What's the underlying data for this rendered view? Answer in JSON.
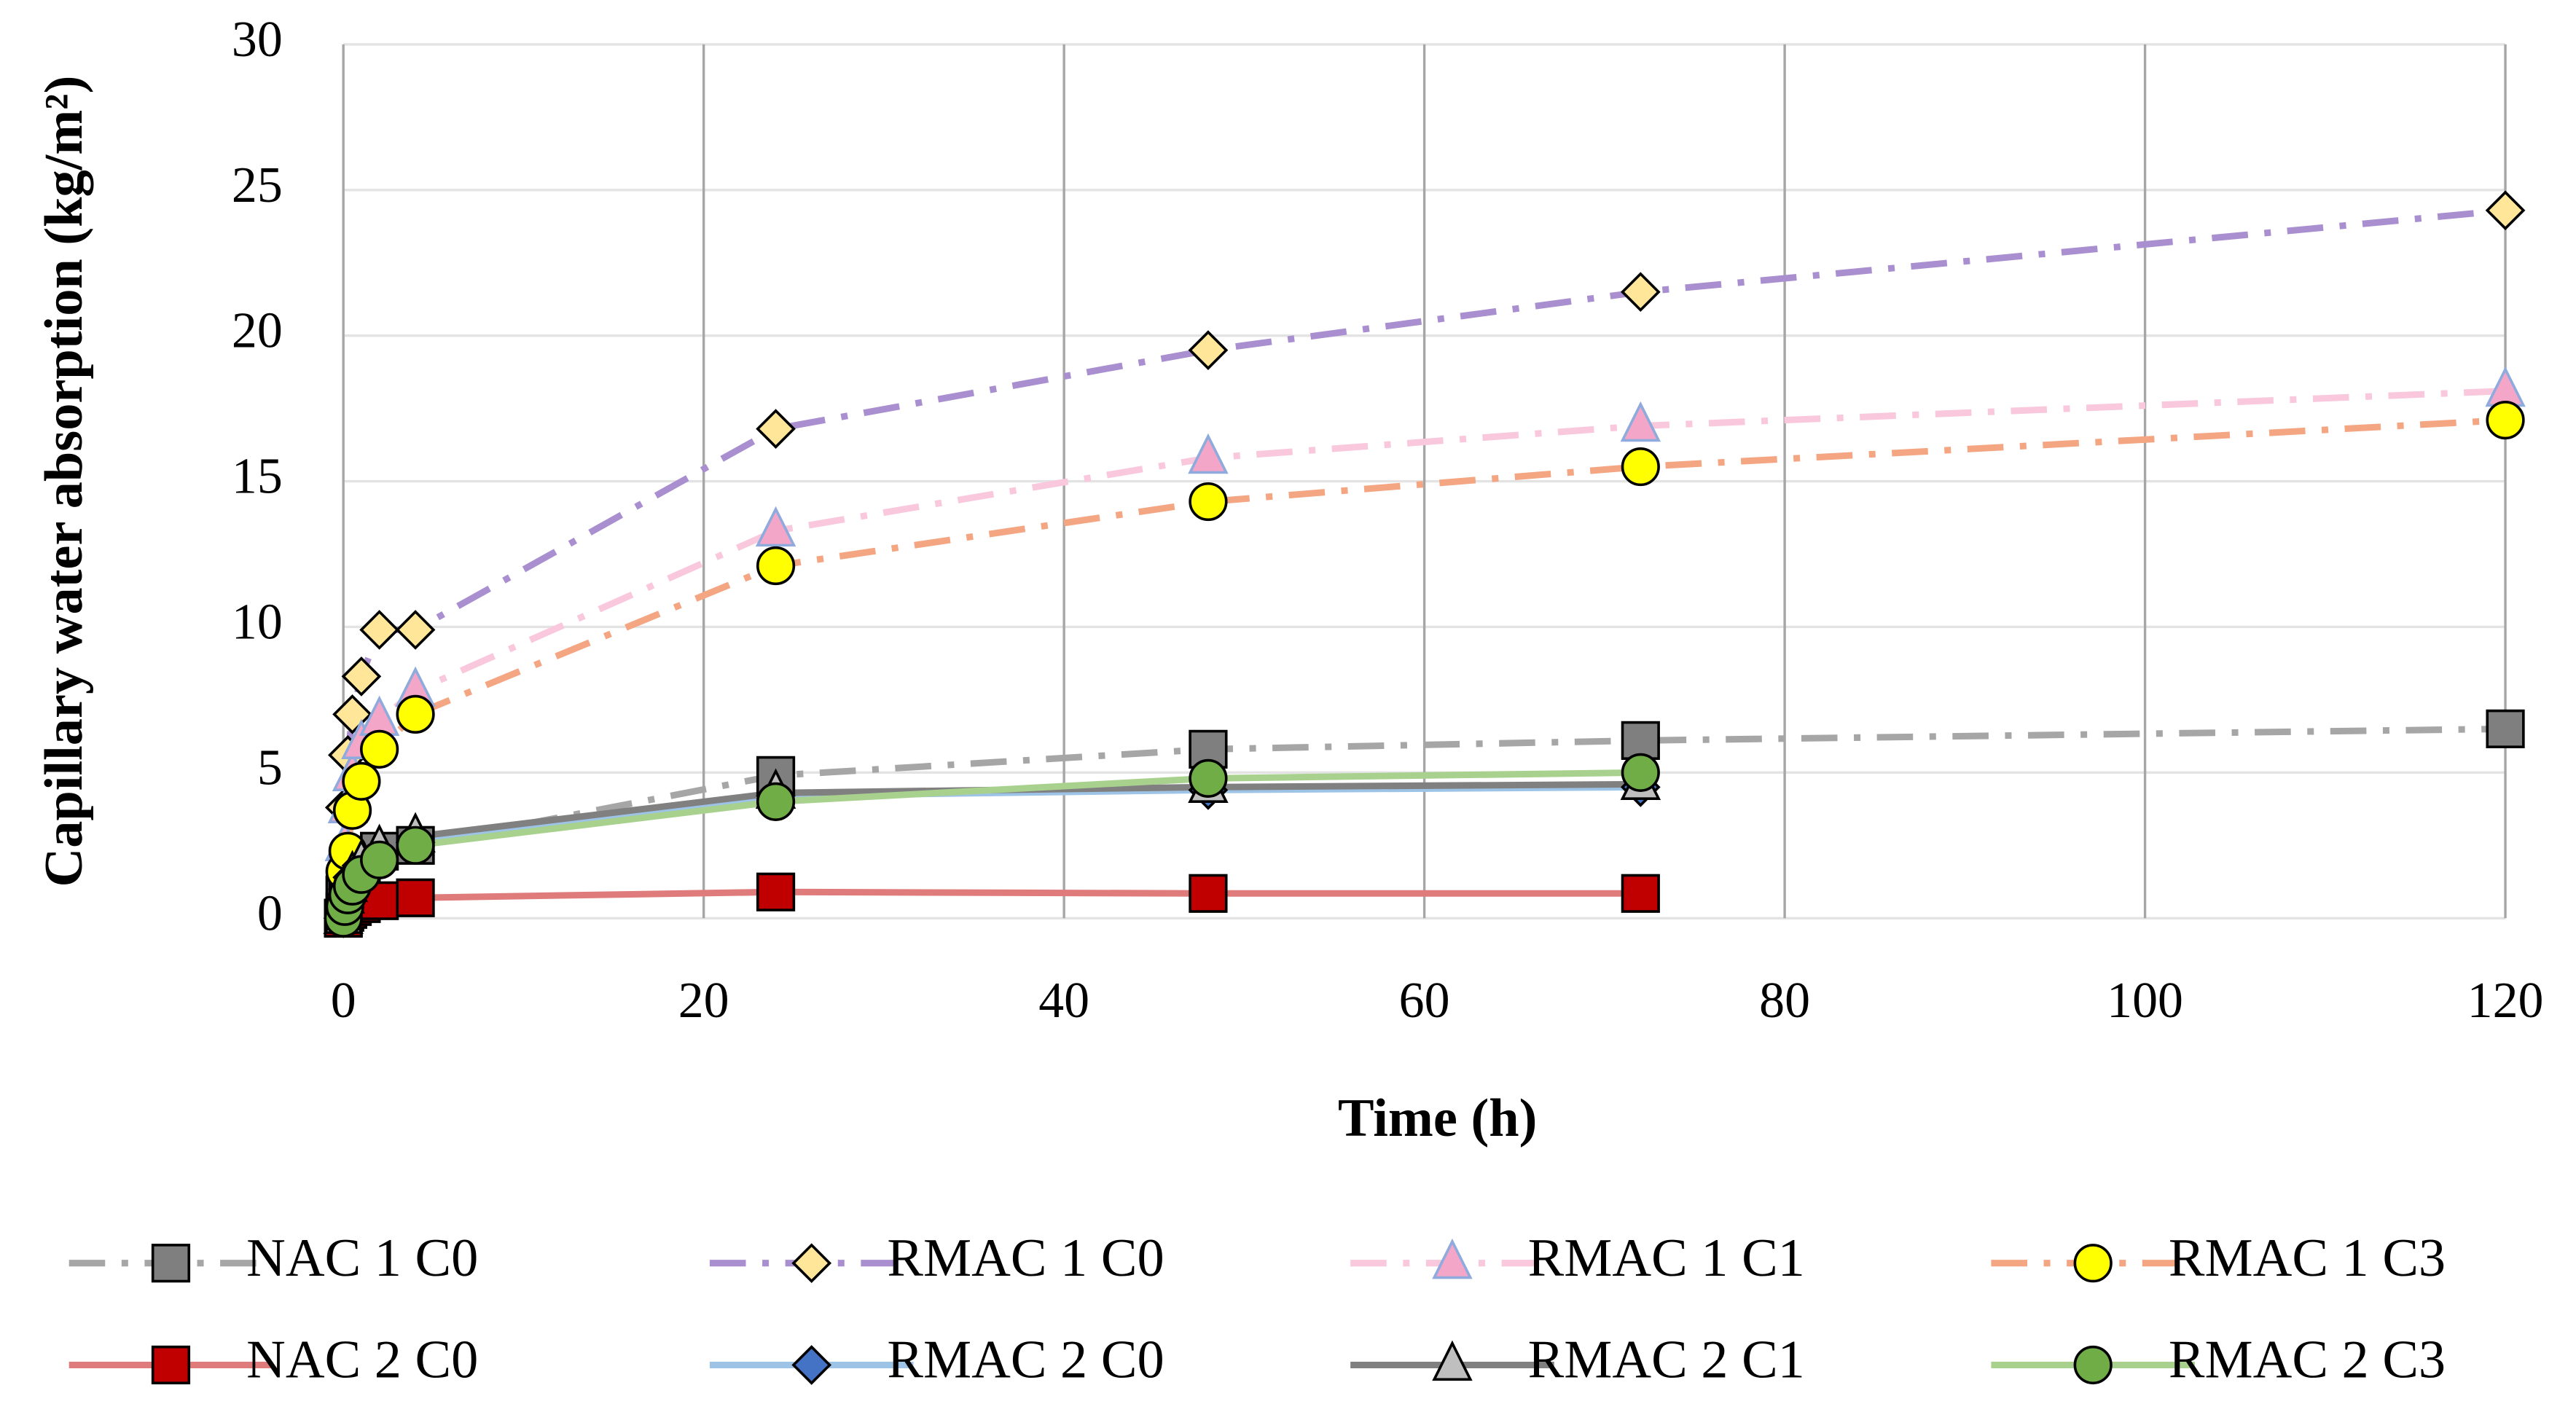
{
  "chart_data": {
    "type": "line",
    "x_label": "Time (h)",
    "y_label": "Capillary water absorption (kg/m²)",
    "x": [
      0,
      0.083,
      0.25,
      0.5,
      1,
      2,
      4,
      24,
      48,
      72,
      120
    ],
    "xlim": [
      0,
      120
    ],
    "xticks": [
      0,
      20,
      40,
      60,
      80,
      100,
      120
    ],
    "ylim": [
      0,
      30
    ],
    "yticks": [
      0,
      5,
      10,
      15,
      20,
      25,
      30
    ],
    "grid": true,
    "legend": "bottom",
    "series": [
      {
        "name": "NAC 1 C0",
        "color": "#a6a6a6",
        "marker": "square",
        "marker_color": "#7f7f7f",
        "dash": "dashdot",
        "values": [
          0,
          0.8,
          1.2,
          1.5,
          1.9,
          2.3,
          2.5,
          4.9,
          5.8,
          6.1,
          6.5
        ]
      },
      {
        "name": "RMAC 1 C0",
        "color": "#a98fd0",
        "marker": "diamond",
        "marker_color": "#ffe699",
        "dash": "dashdot",
        "values": [
          0,
          3.8,
          5.6,
          7.0,
          8.3,
          9.9,
          9.9,
          16.8,
          19.5,
          21.5,
          24.3
        ]
      },
      {
        "name": "RMAC 1 C1",
        "color": "#f9c8dc",
        "marker": "triangle",
        "marker_color": "#f4a6c8",
        "dash": "dashdot",
        "values": [
          0,
          2.5,
          3.8,
          4.9,
          6.0,
          6.8,
          7.8,
          13.3,
          15.8,
          16.9,
          18.1
        ]
      },
      {
        "name": "RMAC 1 C3",
        "color": "#f4a582",
        "marker": "circle",
        "marker_color": "#ffff00",
        "dash": "dashdot",
        "values": [
          0,
          1.6,
          2.3,
          3.7,
          4.7,
          5.8,
          7.0,
          12.1,
          14.3,
          15.5,
          17.1
        ]
      },
      {
        "name": "NAC 2 C0",
        "color": "#e07b7b",
        "marker": "square",
        "marker_color": "#c00000",
        "dash": "solid",
        "values": [
          0,
          0.2,
          0.3,
          0.4,
          0.5,
          0.6,
          0.7,
          0.9,
          0.85,
          0.85,
          null
        ]
      },
      {
        "name": "RMAC 2 C0",
        "color": "#9dc3e6",
        "marker": "diamond",
        "marker_color": "#4472c4",
        "dash": "solid",
        "values": [
          0,
          0.6,
          1.0,
          1.4,
          1.8,
          2.2,
          2.6,
          4.2,
          4.4,
          4.5,
          null
        ]
      },
      {
        "name": "RMAC 2 C1",
        "color": "#808080",
        "marker": "triangle",
        "marker_color": "#bfbfbf",
        "dash": "solid",
        "values": [
          0,
          0.7,
          1.1,
          1.5,
          1.9,
          2.4,
          2.8,
          4.3,
          4.5,
          4.6,
          null
        ]
      },
      {
        "name": "RMAC 2 C3",
        "color": "#a9d18e",
        "marker": "circle",
        "marker_color": "#70ad47",
        "dash": "solid",
        "values": [
          0,
          0.4,
          0.8,
          1.1,
          1.5,
          2.0,
          2.5,
          4.0,
          4.8,
          5.0,
          null
        ]
      }
    ]
  }
}
